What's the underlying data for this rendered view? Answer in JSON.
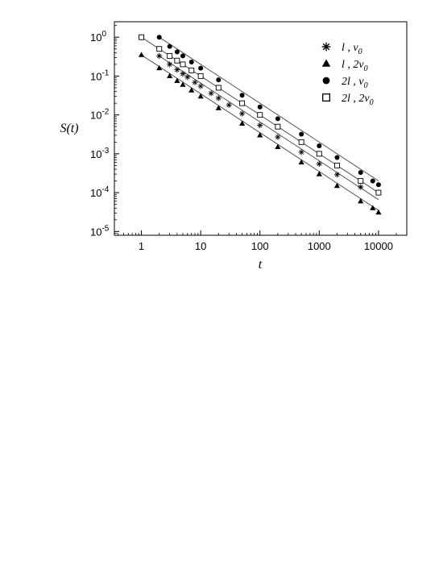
{
  "chart_data": {
    "type": "scatter",
    "title": "",
    "xlabel": "t",
    "ylabel": "S(t)",
    "xscale": "log",
    "yscale": "log",
    "xlim": [
      0.35,
      30000
    ],
    "ylim": [
      8e-06,
      2.5
    ],
    "grid": false,
    "legend_position": "top-right",
    "x_ticks": [
      {
        "value": 1,
        "label": "1"
      },
      {
        "value": 10,
        "label": "10"
      },
      {
        "value": 100,
        "label": "100"
      },
      {
        "value": 1000,
        "label": "1000"
      },
      {
        "value": 10000,
        "label": "10000"
      }
    ],
    "y_ticks": [
      {
        "value": 1,
        "base": "10",
        "exp": "0"
      },
      {
        "value": 0.1,
        "base": "10",
        "exp": "-1"
      },
      {
        "value": 0.01,
        "base": "10",
        "exp": "-2"
      },
      {
        "value": 0.001,
        "base": "10",
        "exp": "-3"
      },
      {
        "value": 0.0001,
        "base": "10",
        "exp": "-4"
      },
      {
        "value": 1e-05,
        "base": "10",
        "exp": "-5"
      }
    ],
    "series": [
      {
        "name": "l , v0",
        "name_main": "l , v",
        "name_sub": "0",
        "marker": "asterisk",
        "values": [
          [
            1,
            1.0
          ],
          [
            2,
            0.33
          ],
          [
            3,
            0.2
          ],
          [
            4,
            0.145
          ],
          [
            5,
            0.115
          ],
          [
            6,
            0.094
          ],
          [
            8,
            0.069
          ],
          [
            10,
            0.055
          ],
          [
            15,
            0.036
          ],
          [
            20,
            0.027
          ],
          [
            30,
            0.018
          ],
          [
            50,
            0.0108
          ],
          [
            100,
            0.0054
          ],
          [
            200,
            0.0027
          ],
          [
            500,
            0.0011
          ],
          [
            1000,
            0.00055
          ],
          [
            2000,
            0.00029
          ],
          [
            5000,
            0.00014
          ],
          [
            10000,
            0.0001
          ]
        ]
      },
      {
        "name": "l , 2v0",
        "name_main": "l , 2v",
        "name_sub": "0",
        "marker": "triangle",
        "values": [
          [
            1,
            0.35
          ],
          [
            2,
            0.16
          ],
          [
            3,
            0.1
          ],
          [
            4,
            0.075
          ],
          [
            5,
            0.06
          ],
          [
            7,
            0.043
          ],
          [
            10,
            0.03
          ],
          [
            20,
            0.015
          ],
          [
            50,
            0.006
          ],
          [
            100,
            0.003
          ],
          [
            200,
            0.0015
          ],
          [
            500,
            0.0006
          ],
          [
            1000,
            0.0003
          ],
          [
            2000,
            0.00015
          ],
          [
            5000,
            6e-05
          ],
          [
            8000,
            4e-05
          ],
          [
            10000,
            3.1e-05
          ]
        ]
      },
      {
        "name": "2l , v0",
        "name_main": "2l , v",
        "name_sub": "0",
        "marker": "circle",
        "values": [
          [
            2,
            1.0
          ],
          [
            3,
            0.58
          ],
          [
            4,
            0.42
          ],
          [
            5,
            0.33
          ],
          [
            7,
            0.23
          ],
          [
            10,
            0.16
          ],
          [
            20,
            0.08
          ],
          [
            50,
            0.032
          ],
          [
            100,
            0.016
          ],
          [
            200,
            0.008
          ],
          [
            500,
            0.0032
          ],
          [
            1000,
            0.0016
          ],
          [
            2000,
            0.0008
          ],
          [
            5000,
            0.00033
          ],
          [
            8000,
            0.0002
          ],
          [
            10000,
            0.00016
          ]
        ]
      },
      {
        "name": "2l , 2v0",
        "name_main": "2l , 2v",
        "name_sub": "0",
        "marker": "square",
        "values": [
          [
            1,
            1.0
          ],
          [
            2,
            0.5
          ],
          [
            3,
            0.33
          ],
          [
            4,
            0.25
          ],
          [
            5,
            0.2
          ],
          [
            7,
            0.14
          ],
          [
            10,
            0.1
          ],
          [
            20,
            0.05
          ],
          [
            50,
            0.02
          ],
          [
            100,
            0.01
          ],
          [
            200,
            0.005
          ],
          [
            500,
            0.002
          ],
          [
            1000,
            0.001
          ],
          [
            2000,
            0.0005
          ],
          [
            5000,
            0.0002
          ],
          [
            10000,
            0.0001
          ]
        ]
      }
    ],
    "fit_lines": [
      {
        "from": [
          1,
          1.0
        ],
        "to": [
          10000,
          0.0001
        ]
      },
      {
        "from": [
          2,
          1.0
        ],
        "to": [
          10000,
          0.0002
        ]
      },
      {
        "from": [
          1,
          0.35
        ],
        "to": [
          10000,
          3.5e-05
        ]
      },
      {
        "from": [
          2,
          0.33
        ],
        "to": [
          10000,
          6.6e-05
        ]
      }
    ]
  }
}
